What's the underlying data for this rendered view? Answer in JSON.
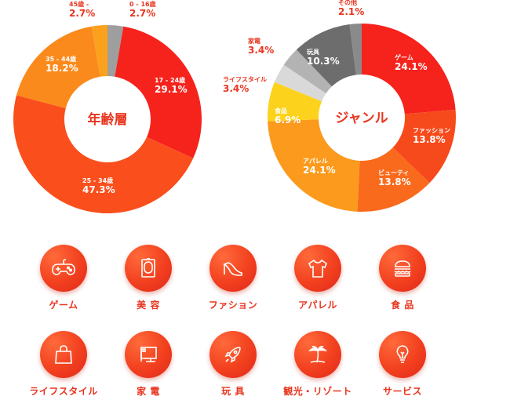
{
  "chart_data": [
    {
      "type": "pie",
      "title": "年齢層",
      "slices": [
        {
          "label": "0 - 16歳",
          "value": 2.7,
          "display": "2.7%",
          "color": "#9e9e9e"
        },
        {
          "label": "17 - 24歳",
          "value": 29.1,
          "display": "29.1%",
          "color": "#f5231c"
        },
        {
          "label": "25 - 34歳",
          "value": 47.3,
          "display": "47.3%",
          "color": "#fa4f1c"
        },
        {
          "label": "35 - 44歳",
          "value": 18.2,
          "display": "18.2%",
          "color": "#fb8a1c"
        },
        {
          "label": "45歳 -",
          "value": 2.7,
          "display": "2.7%",
          "color": "#fba11c"
        }
      ]
    },
    {
      "type": "pie",
      "title": "ジャンル",
      "slices": [
        {
          "label": "ゲーム",
          "value": 24.1,
          "display": "24.1%",
          "color": "#f5231c"
        },
        {
          "label": "ファッション",
          "value": 13.8,
          "display": "13.8%",
          "color": "#f74a1c"
        },
        {
          "label": "ビューティ",
          "value": 13.8,
          "display": "13.8%",
          "color": "#fa6a1c"
        },
        {
          "label": "アパレル",
          "value": 24.1,
          "display": "24.1%",
          "color": "#fb9a1c"
        },
        {
          "label": "食品",
          "value": 6.9,
          "display": "6.9%",
          "color": "#fdd21c"
        },
        {
          "label": "ライフスタイル",
          "value": 3.4,
          "display": "3.4%",
          "color": "#d9d9d9"
        },
        {
          "label": "家電",
          "value": 3.4,
          "display": "3.4%",
          "color": "#b3b3b3"
        },
        {
          "label": "玩具",
          "value": 10.3,
          "display": "10.3%",
          "color": "#6d6d6d"
        },
        {
          "label": "その他",
          "value": 2.1,
          "display": "2.1%",
          "color": "#8a8a8a"
        }
      ]
    }
  ],
  "categories": [
    {
      "label": "ゲーム",
      "icon": "gamepad-icon"
    },
    {
      "label": "美 容",
      "icon": "mirror-icon"
    },
    {
      "label": "ファション",
      "icon": "high-heel-icon"
    },
    {
      "label": "アパレル",
      "icon": "t-shirt-icon"
    },
    {
      "label": "食 品",
      "icon": "burger-icon"
    },
    {
      "label": "ライフスタイル",
      "icon": "shopping-bag-icon"
    },
    {
      "label": "家 電",
      "icon": "monitor-icon"
    },
    {
      "label": "玩 具",
      "icon": "rocket-icon"
    },
    {
      "label": "観光・リゾート",
      "icon": "palm-tree-icon"
    },
    {
      "label": "サービス",
      "icon": "lightbulb-icon"
    }
  ],
  "colors": {
    "accent": "#e8351f",
    "label_red": "#e8351f",
    "label_white": "#ffffff"
  }
}
